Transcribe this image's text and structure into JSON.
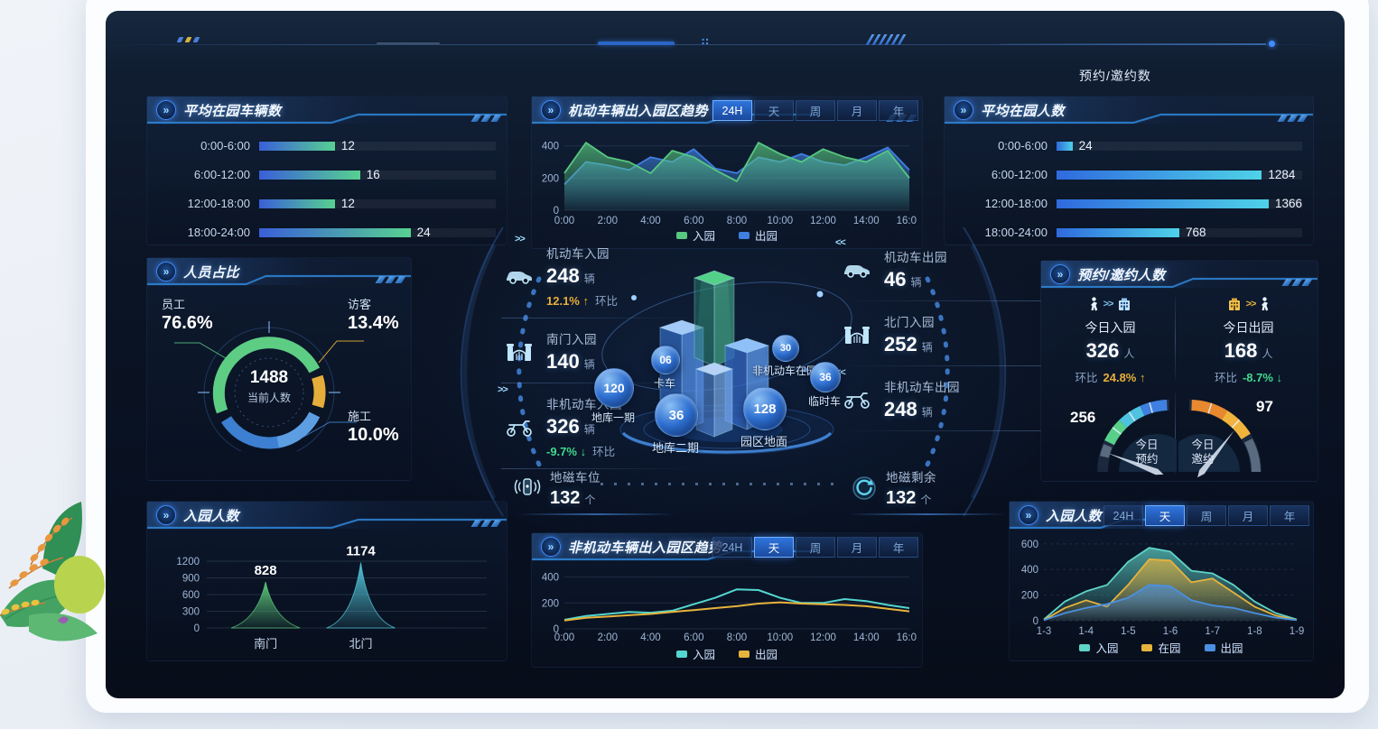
{
  "header": {
    "menu_label": "预约/邀约数"
  },
  "panels": {
    "avg_vehicles": {
      "title": "平均在园车辆数",
      "rows": [
        {
          "label": "0:00-6:00",
          "value": "12"
        },
        {
          "label": "6:00-12:00",
          "value": "16"
        },
        {
          "label": "12:00-18:00",
          "value": "12"
        },
        {
          "label": "18:00-24:00",
          "value": "24"
        }
      ]
    },
    "vehicle_trend": {
      "title": "机动车辆出入园区趋势",
      "tabs": [
        "24H",
        "天",
        "周",
        "月",
        "年"
      ],
      "active_tab": "24H"
    },
    "avg_people": {
      "title": "平均在园人数",
      "rows": [
        {
          "label": "0:00-6:00",
          "value": "24"
        },
        {
          "label": "6:00-12:00",
          "value": "1284"
        },
        {
          "label": "12:00-18:00",
          "value": "1366"
        },
        {
          "label": "18:00-24:00",
          "value": "768"
        }
      ]
    },
    "people_ratio": {
      "title": "人员占比",
      "center_value": "1488",
      "center_label": "当前人数",
      "labels": [
        {
          "name": "员工",
          "pct": "76.6%"
        },
        {
          "name": "访客",
          "pct": "13.4%"
        },
        {
          "name": "施工",
          "pct": "10.0%"
        }
      ]
    },
    "reservation": {
      "title": "预约/邀约人数",
      "kpis": [
        {
          "title": "今日入园",
          "value": "326",
          "unit": "人",
          "ratio_label": "环比",
          "delta": "24.8%",
          "arrow": "↑"
        },
        {
          "title": "今日出园",
          "value": "168",
          "unit": "人",
          "ratio_label": "环比",
          "delta": "-8.7%",
          "arrow": "↓"
        }
      ],
      "gauges": [
        {
          "value": "256",
          "line1": "今日",
          "line2": "预约"
        },
        {
          "value": "97",
          "line1": "今日",
          "line2": "邀约"
        }
      ]
    },
    "entry_gate": {
      "title": "入园人数"
    },
    "nonmotor_trend": {
      "title": "非机动车辆出入园区趋势",
      "tabs": [
        "24H",
        "天",
        "周",
        "月",
        "年"
      ],
      "active_tab": "天"
    },
    "entry_trend": {
      "title": "入园人数",
      "tabs": [
        "24H",
        "天",
        "周",
        "月",
        "年"
      ],
      "active_tab": "天"
    }
  },
  "center": {
    "stats_left": [
      {
        "name": "机动车入园",
        "value": "248",
        "unit": "辆",
        "delta": "12.1%",
        "arrow": "↑",
        "dir": "up",
        "suffix": "环比"
      },
      {
        "name": "南门入园",
        "value": "140",
        "unit": "辆"
      },
      {
        "name": "非机动车入园",
        "value": "326",
        "unit": "辆",
        "delta": "-9.7%",
        "arrow": "↓",
        "dir": "down",
        "suffix": "环比"
      }
    ],
    "stats_right": [
      {
        "name": "机动车出园",
        "value": "46",
        "unit": "辆"
      },
      {
        "name": "北门入园",
        "value": "252",
        "unit": "辆"
      },
      {
        "name": "非机动车出园",
        "value": "248",
        "unit": "辆"
      }
    ],
    "geomag_left": {
      "name": "地磁车位",
      "value": "132",
      "unit": "个"
    },
    "geomag_right": {
      "name": "地磁剩余",
      "value": "132",
      "unit": "个"
    },
    "bubbles": [
      {
        "value": "06",
        "label": "卡车"
      },
      {
        "value": "30",
        "label": "非机动车在园"
      },
      {
        "value": "36",
        "label": "临时车"
      },
      {
        "value": "120",
        "label": "地库一期"
      },
      {
        "value": "36",
        "label": "地库二期"
      },
      {
        "value": "128",
        "label": "园区地面"
      }
    ]
  },
  "chart_data": [
    {
      "id": "avg_vehicles",
      "type": "bar",
      "orientation": "horizontal",
      "title": "平均在园车辆数",
      "categories": [
        "0:00-6:00",
        "6:00-12:00",
        "12:00-18:00",
        "18:00-24:00"
      ],
      "values": [
        12,
        16,
        12,
        24
      ],
      "xlim": [
        0,
        37.5
      ],
      "bar_colors": [
        "#3a5fd8",
        "#57d191"
      ]
    },
    {
      "id": "vehicle_trend",
      "type": "area",
      "title": "机动车辆出入园区趋势",
      "tabs": [
        "24H",
        "天",
        "周",
        "月",
        "年"
      ],
      "active_tab": "24H",
      "x_ticks": [
        "0:00",
        "2:00",
        "4:00",
        "6:00",
        "8:00",
        "10:00",
        "12:00",
        "14:00",
        "16:00"
      ],
      "ylim": [
        0,
        460
      ],
      "y_ticks": [
        0,
        200,
        400
      ],
      "legend_position": "bottom",
      "series": [
        {
          "name": "入园",
          "color": "#57c880",
          "values": [
            230,
            420,
            330,
            300,
            230,
            370,
            330,
            250,
            180,
            420,
            350,
            300,
            380,
            330,
            300,
            370,
            200
          ]
        },
        {
          "name": "出园",
          "color": "#3f7fe0",
          "values": [
            160,
            300,
            280,
            250,
            330,
            300,
            380,
            260,
            230,
            330,
            300,
            350,
            300,
            280,
            330,
            390,
            250
          ]
        }
      ]
    },
    {
      "id": "avg_people",
      "type": "bar",
      "orientation": "horizontal",
      "title": "平均在园人数",
      "categories": [
        "0:00-6:00",
        "6:00-12:00",
        "12:00-18:00",
        "18:00-24:00"
      ],
      "values": [
        24,
        1284,
        1366,
        768
      ],
      "xlim": [
        0,
        1536
      ],
      "bar_colors": [
        "#2f6ade",
        "#4ed2e8"
      ]
    },
    {
      "id": "people_ratio",
      "type": "pie",
      "title": "人员占比",
      "center_value": 1488,
      "center_label": "当前人数",
      "slices": [
        {
          "label": "员工",
          "value": 76.6,
          "color": "#5ecd84"
        },
        {
          "label": "访客",
          "value": 13.4,
          "color": "#e5ad3a"
        },
        {
          "label": "施工",
          "value": 10.0,
          "color": "#3d7fd0"
        }
      ]
    },
    {
      "id": "reservation_gauges",
      "type": "gauge",
      "gauges": [
        {
          "label": "今日预约",
          "value": 256,
          "colors": [
            "#58d08a",
            "#4fc2e0",
            "#3f7fe0"
          ]
        },
        {
          "label": "今日邀约",
          "value": 97,
          "colors": [
            "#e8882f",
            "#f0b43c"
          ]
        }
      ]
    },
    {
      "id": "entry_gate",
      "type": "bar",
      "title": "入园人数",
      "categories": [
        "南门",
        "北门"
      ],
      "values": [
        828,
        1174
      ],
      "ylim": [
        0,
        1200
      ],
      "y_ticks": [
        0,
        300,
        600,
        900,
        1200
      ],
      "colors": [
        "#5fce7e",
        "#55cde0"
      ],
      "cat_pos": [
        0.21,
        0.55
      ]
    },
    {
      "id": "nonmotor_trend",
      "type": "line",
      "title": "非机动车辆出入园区趋势",
      "tabs": [
        "24H",
        "天",
        "周",
        "月",
        "年"
      ],
      "active_tab": "天",
      "x_ticks": [
        "0:00",
        "2:00",
        "4:00",
        "6:00",
        "8:00",
        "10:00",
        "12:00",
        "14:00",
        "16:00"
      ],
      "ylim": [
        0,
        460
      ],
      "y_ticks": [
        0,
        200,
        400
      ],
      "series": [
        {
          "name": "入园",
          "color": "#53d6cf",
          "values": [
            70,
            100,
            115,
            130,
            125,
            140,
            190,
            240,
            305,
            300,
            240,
            200,
            200,
            230,
            215,
            185,
            160
          ]
        },
        {
          "name": "出园",
          "color": "#e6b33c",
          "values": [
            65,
            85,
            95,
            105,
            115,
            130,
            145,
            160,
            175,
            195,
            205,
            195,
            190,
            185,
            175,
            155,
            135
          ]
        }
      ]
    },
    {
      "id": "entry_trend",
      "type": "area",
      "title": "入园人数",
      "tabs": [
        "24H",
        "天",
        "周",
        "月",
        "年"
      ],
      "active_tab": "天",
      "x_ticks": [
        "1-3",
        "1-4",
        "1-5",
        "1-6",
        "1-7",
        "1-8",
        "1-9"
      ],
      "ylim": [
        0,
        620
      ],
      "y_ticks": [
        0,
        200,
        400,
        600
      ],
      "series": [
        {
          "name": "入园",
          "color": "#5fd4c8",
          "values": [
            10,
            150,
            230,
            280,
            460,
            570,
            540,
            390,
            370,
            280,
            150,
            60,
            10
          ]
        },
        {
          "name": "在园",
          "color": "#e8b33c",
          "values": [
            5,
            100,
            160,
            110,
            280,
            480,
            470,
            300,
            330,
            220,
            110,
            40,
            5
          ]
        },
        {
          "name": "出园",
          "color": "#4a90e2",
          "values": [
            5,
            60,
            100,
            130,
            180,
            280,
            270,
            160,
            120,
            100,
            60,
            25,
            5
          ]
        }
      ]
    }
  ]
}
